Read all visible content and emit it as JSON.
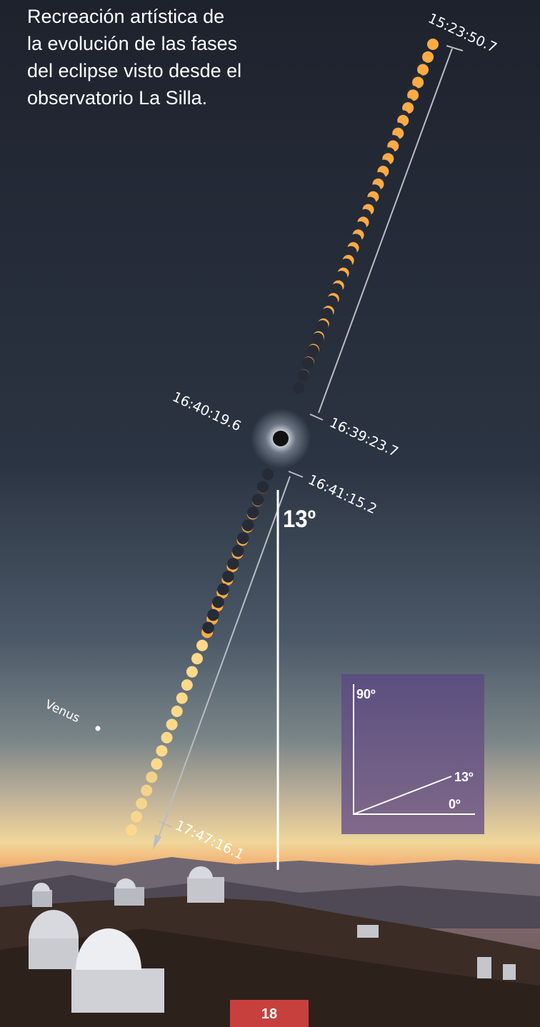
{
  "title_lines": [
    "Recreación artística de",
    "la evolución de las fases",
    "del eclipse visto desde el",
    "observatorio La Silla."
  ],
  "times": {
    "start": "15:23:50.7",
    "contact2": "16:39:23.7",
    "totality": "16:40:19.6",
    "contact3": "16:41:15.2",
    "end": "17:47:16.1"
  },
  "altitude_label": "13º",
  "venus_label": "Venus",
  "inset": {
    "top": "90º",
    "angle": "13º",
    "zero": "0º"
  },
  "page_number": "18"
}
